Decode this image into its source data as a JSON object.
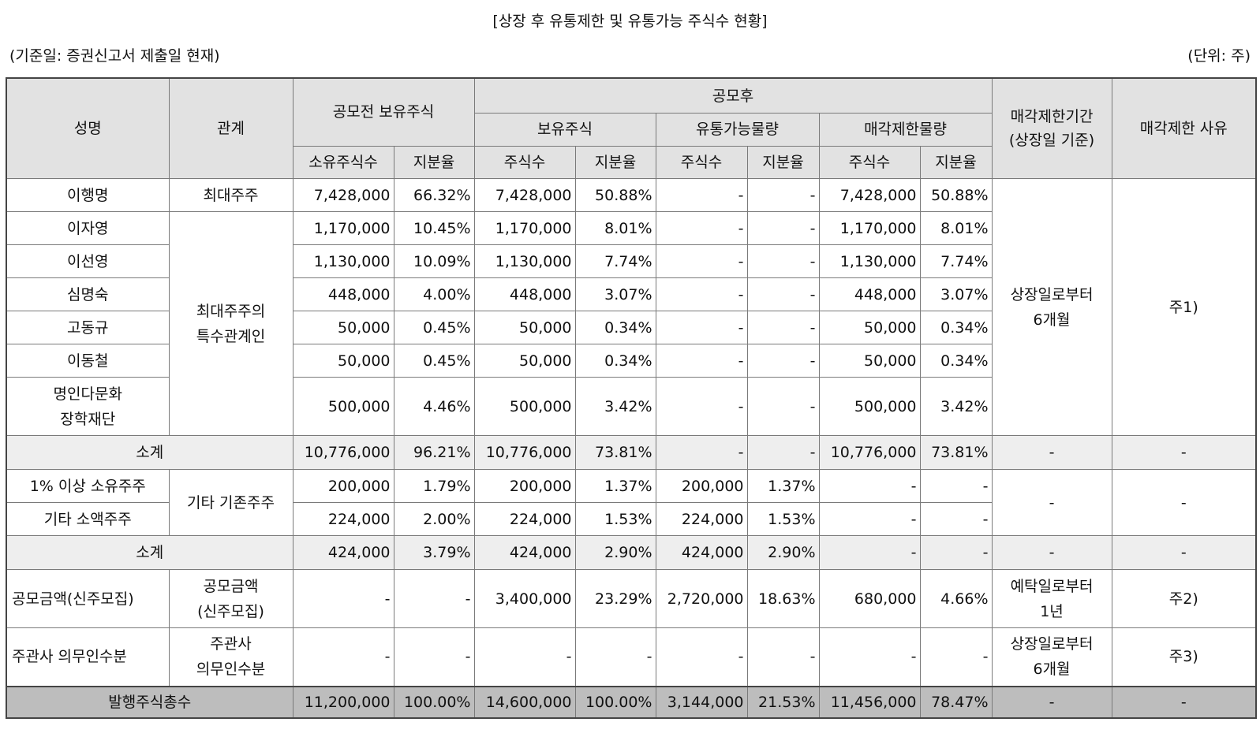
{
  "title": "[상장 후 유통제한 및 유통가능 주식수 현황]",
  "basis": "(기준일: 증권신고서 제출일 현재)",
  "unit": "(단위: 주)",
  "headers": {
    "name": "성명",
    "relation": "관계",
    "pre_ipo": "공모전 보유주식",
    "post_ipo": "공모후",
    "held": "보유주식",
    "tradable": "유통가능물량",
    "restricted": "매각제한물량",
    "period": "매각제한기간\n(상장일 기준)",
    "reason": "매각제한 사유",
    "owned_shares": "소유주식수",
    "ratio": "지분율",
    "shares": "주식수"
  },
  "rows": [
    {
      "name": "이행명",
      "relation": "최대주주",
      "v": [
        "7,428,000",
        "66.32%",
        "7,428,000",
        "50.88%",
        "-",
        "-",
        "7,428,000",
        "50.88%"
      ]
    },
    {
      "name": "이자영",
      "v": [
        "1,170,000",
        "10.45%",
        "1,170,000",
        "8.01%",
        "-",
        "-",
        "1,170,000",
        "8.01%"
      ]
    },
    {
      "name": "이선영",
      "v": [
        "1,130,000",
        "10.09%",
        "1,130,000",
        "7.74%",
        "-",
        "-",
        "1,130,000",
        "7.74%"
      ]
    },
    {
      "name": "심명숙",
      "v": [
        "448,000",
        "4.00%",
        "448,000",
        "3.07%",
        "-",
        "-",
        "448,000",
        "3.07%"
      ]
    },
    {
      "name": "고동규",
      "v": [
        "50,000",
        "0.45%",
        "50,000",
        "0.34%",
        "-",
        "-",
        "50,000",
        "0.34%"
      ]
    },
    {
      "name": "이동철",
      "v": [
        "50,000",
        "0.45%",
        "50,000",
        "0.34%",
        "-",
        "-",
        "50,000",
        "0.34%"
      ]
    },
    {
      "name": "명인다문화\n장학재단",
      "v": [
        "500,000",
        "4.46%",
        "500,000",
        "3.42%",
        "-",
        "-",
        "500,000",
        "3.42%"
      ]
    }
  ],
  "group1": {
    "relation": "최대주주의\n특수관계인",
    "period": "상장일로부터\n6개월",
    "reason": "주1)"
  },
  "subtotal1": {
    "label": "소계",
    "v": [
      "10,776,000",
      "96.21%",
      "10,776,000",
      "73.81%",
      "-",
      "-",
      "10,776,000",
      "73.81%"
    ],
    "period": "-",
    "reason": "-"
  },
  "others": [
    {
      "name": "1% 이상 소유주주",
      "v": [
        "200,000",
        "1.79%",
        "200,000",
        "1.37%",
        "200,000",
        "1.37%",
        "-",
        "-"
      ]
    },
    {
      "name": "기타 소액주주",
      "v": [
        "224,000",
        "2.00%",
        "224,000",
        "1.53%",
        "224,000",
        "1.53%",
        "-",
        "-"
      ]
    }
  ],
  "group2": {
    "relation": "기타 기존주주",
    "period": "-",
    "reason": "-"
  },
  "subtotal2": {
    "label": "소계",
    "v": [
      "424,000",
      "3.79%",
      "424,000",
      "2.90%",
      "424,000",
      "2.90%",
      "-",
      "-"
    ],
    "period": "-",
    "reason": "-"
  },
  "ipo": {
    "name": "공모금액(신주모집)",
    "relation": "공모금액\n(신주모집)",
    "v": [
      "-",
      "-",
      "3,400,000",
      "23.29%",
      "2,720,000",
      "18.63%",
      "680,000",
      "4.66%"
    ],
    "period": "예탁일로부터\n1년",
    "reason": "주2)"
  },
  "underwriter": {
    "name": "주관사 의무인수분",
    "relation": "주관사\n의무인수분",
    "v": [
      "-",
      "-",
      "-",
      "-",
      "-",
      "-",
      "-",
      "-"
    ],
    "period": "상장일로부터\n6개월",
    "reason": "주3)"
  },
  "total": {
    "label": "발행주식총수",
    "v": [
      "11,200,000",
      "100.00%",
      "14,600,000",
      "100.00%",
      "3,144,000",
      "21.53%",
      "11,456,000",
      "78.47%"
    ],
    "period": "-",
    "reason": "-"
  }
}
